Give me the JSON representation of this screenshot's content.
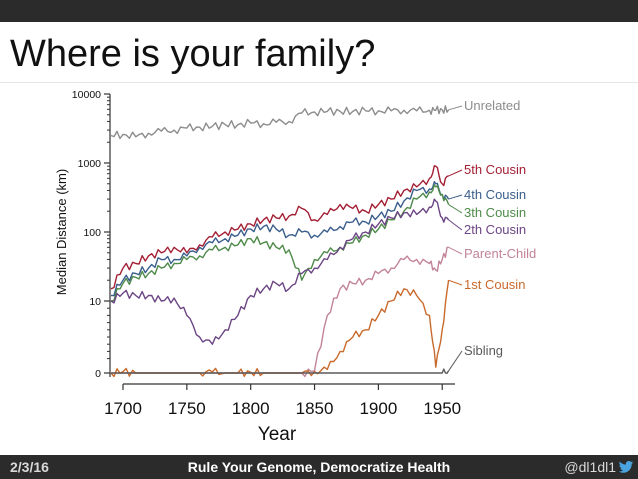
{
  "slide": {
    "title": "Where is your family?"
  },
  "footer": {
    "date": "2/3/16",
    "center": "Rule Your Genome, Democratize Health",
    "handle": "@dl1dl1",
    "icon": "twitter-bird-icon"
  },
  "chart_data": {
    "type": "line",
    "title": "",
    "xlabel": "Year",
    "ylabel": "Median Distance (km)",
    "y_scale": "log",
    "xlim": [
      1690,
      1960
    ],
    "x_ticks": [
      "1700",
      "1750",
      "1800",
      "1850",
      "1900",
      "1950"
    ],
    "y_ticks": [
      "0",
      "10",
      "100",
      "1000",
      "10000"
    ],
    "grid": false,
    "legend": "right-end labels",
    "x": [
      1690,
      1700,
      1710,
      1720,
      1730,
      1740,
      1750,
      1760,
      1770,
      1780,
      1790,
      1800,
      1810,
      1820,
      1830,
      1840,
      1850,
      1860,
      1870,
      1880,
      1890,
      1900,
      1910,
      1920,
      1930,
      1940,
      1945,
      1950,
      1955
    ],
    "series": [
      {
        "name": "Unrelated",
        "color": "#8c8c8c",
        "values": [
          2500,
          2600,
          2400,
          2700,
          2900,
          3000,
          3200,
          3300,
          3400,
          3600,
          3600,
          3800,
          3700,
          3900,
          4000,
          5300,
          5500,
          5600,
          5600,
          5600,
          5700,
          5700,
          5700,
          5800,
          5700,
          5800,
          5800,
          5900,
          5900
        ]
      },
      {
        "name": "5th Cousin",
        "color": "#a31f34",
        "values": [
          15,
          30,
          35,
          45,
          50,
          60,
          50,
          65,
          85,
          100,
          110,
          130,
          150,
          160,
          170,
          220,
          150,
          180,
          250,
          220,
          200,
          250,
          300,
          400,
          450,
          600,
          900,
          500,
          650
        ]
      },
      {
        "name": "4th Cousin",
        "color": "#3a5e8c",
        "values": [
          12,
          20,
          25,
          30,
          40,
          40,
          45,
          60,
          70,
          80,
          90,
          110,
          120,
          110,
          90,
          100,
          90,
          100,
          120,
          140,
          140,
          170,
          200,
          280,
          400,
          420,
          500,
          350,
          300
        ]
      },
      {
        "name": "3th Cousin",
        "color": "#4e8a4a",
        "values": [
          10,
          18,
          22,
          25,
          30,
          35,
          40,
          45,
          55,
          60,
          65,
          80,
          70,
          60,
          55,
          20,
          40,
          50,
          60,
          70,
          90,
          110,
          150,
          200,
          300,
          380,
          450,
          350,
          250
        ]
      },
      {
        "name": "2th Cousin",
        "color": "#6b4584",
        "values": [
          10,
          13,
          12,
          12,
          10,
          11,
          8,
          5,
          4,
          6,
          8,
          12,
          15,
          18,
          15,
          25,
          30,
          40,
          60,
          80,
          100,
          130,
          160,
          190,
          180,
          230,
          280,
          160,
          150
        ]
      },
      {
        "name": "Parent-Child",
        "color": "#c2849a",
        "values": [
          0,
          0,
          0,
          0,
          0,
          0,
          0,
          0,
          0,
          0,
          0,
          0,
          0,
          0,
          0,
          0,
          0.3,
          8,
          15,
          18,
          20,
          25,
          30,
          40,
          40,
          35,
          28,
          40,
          60
        ]
      },
      {
        "name": "1st Cousin",
        "color": "#c96a2c",
        "values": [
          0,
          0.2,
          0,
          0,
          0,
          0,
          0,
          0,
          0.15,
          0,
          0,
          0.1,
          0,
          0,
          0,
          0,
          0.2,
          0.5,
          3,
          5,
          6,
          8,
          10,
          15,
          12,
          8,
          0.8,
          6,
          20
        ]
      },
      {
        "name": "Sibling",
        "color": "#5a5a5a",
        "values": [
          0,
          0,
          0,
          0,
          0,
          0,
          0,
          0,
          0,
          0,
          0,
          0,
          0,
          0,
          0,
          0,
          0,
          0,
          0,
          0,
          0,
          0,
          0,
          0,
          0,
          0,
          0,
          0,
          0.3
        ]
      }
    ]
  }
}
